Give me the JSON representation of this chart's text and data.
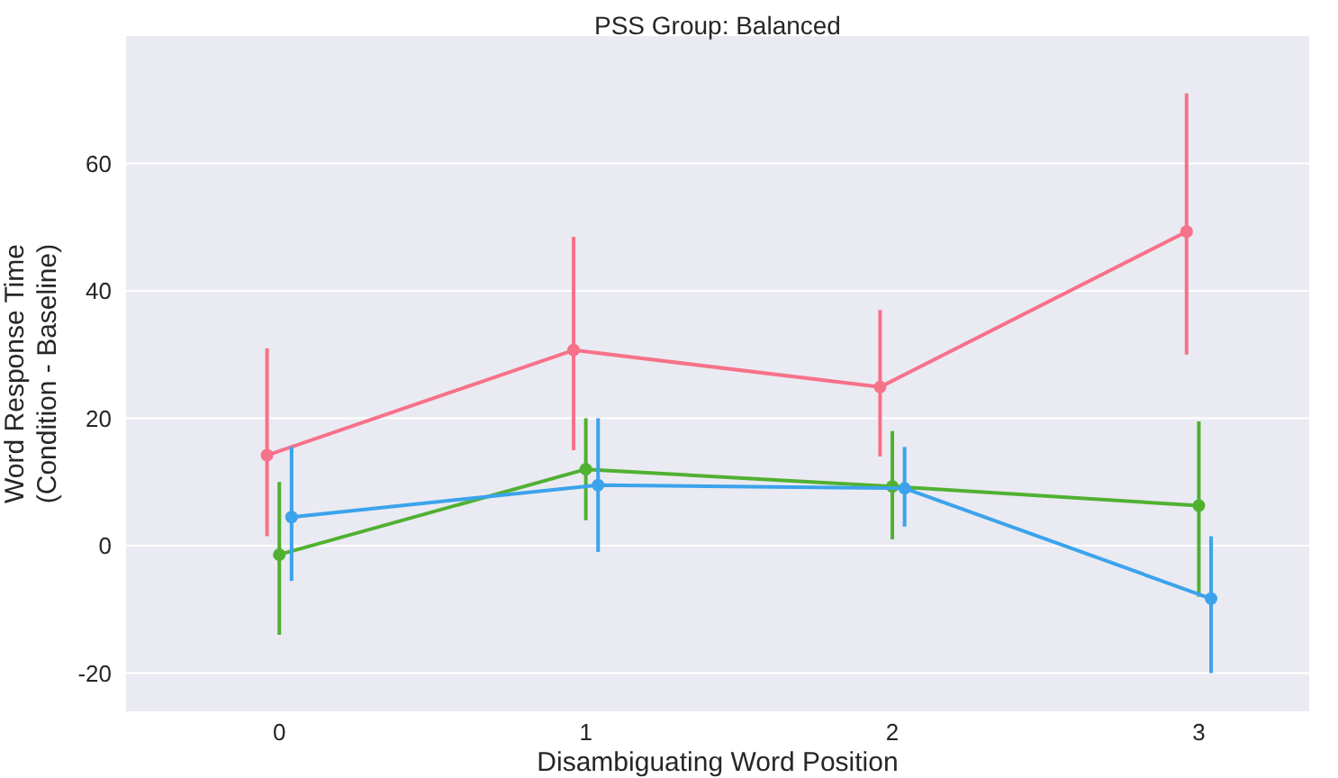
{
  "chart_data": {
    "type": "line",
    "title": "PSS Group: Balanced",
    "xlabel": "Disambiguating Word Position",
    "ylabel": "Word Response Time\n(Condition - Baseline)",
    "xlim": [
      -0.5,
      3.36
    ],
    "xticks": [
      0,
      1,
      2,
      3
    ],
    "ylim": [
      -26,
      80
    ],
    "yticks": [
      -20,
      0,
      20,
      40,
      60
    ],
    "grid": "y",
    "marker": "circle",
    "series": [
      {
        "color": "#f77189",
        "x": [
          -0.04,
          0.96,
          1.96,
          2.96
        ],
        "values": [
          14.2,
          30.7,
          24.9,
          49.3
        ],
        "errors": [
          [
            1.5,
            31
          ],
          [
            15,
            48.5
          ],
          [
            14,
            37
          ],
          [
            30,
            71
          ]
        ]
      },
      {
        "color": "#50b131",
        "x": [
          0,
          1,
          2,
          3
        ],
        "values": [
          -1.4,
          12,
          9.3,
          6.3
        ],
        "errors": [
          [
            -14,
            10
          ],
          [
            4,
            20
          ],
          [
            1,
            18
          ],
          [
            -8,
            19.5
          ]
        ]
      },
      {
        "color": "#3ba3ec",
        "x": [
          0.04,
          1.04,
          2.04,
          3.04
        ],
        "values": [
          4.5,
          9.5,
          9,
          -8.3
        ],
        "errors": [
          [
            -5.5,
            15.5
          ],
          [
            -1,
            20
          ],
          [
            3,
            15.5
          ],
          [
            -20,
            1.5
          ]
        ]
      }
    ]
  }
}
